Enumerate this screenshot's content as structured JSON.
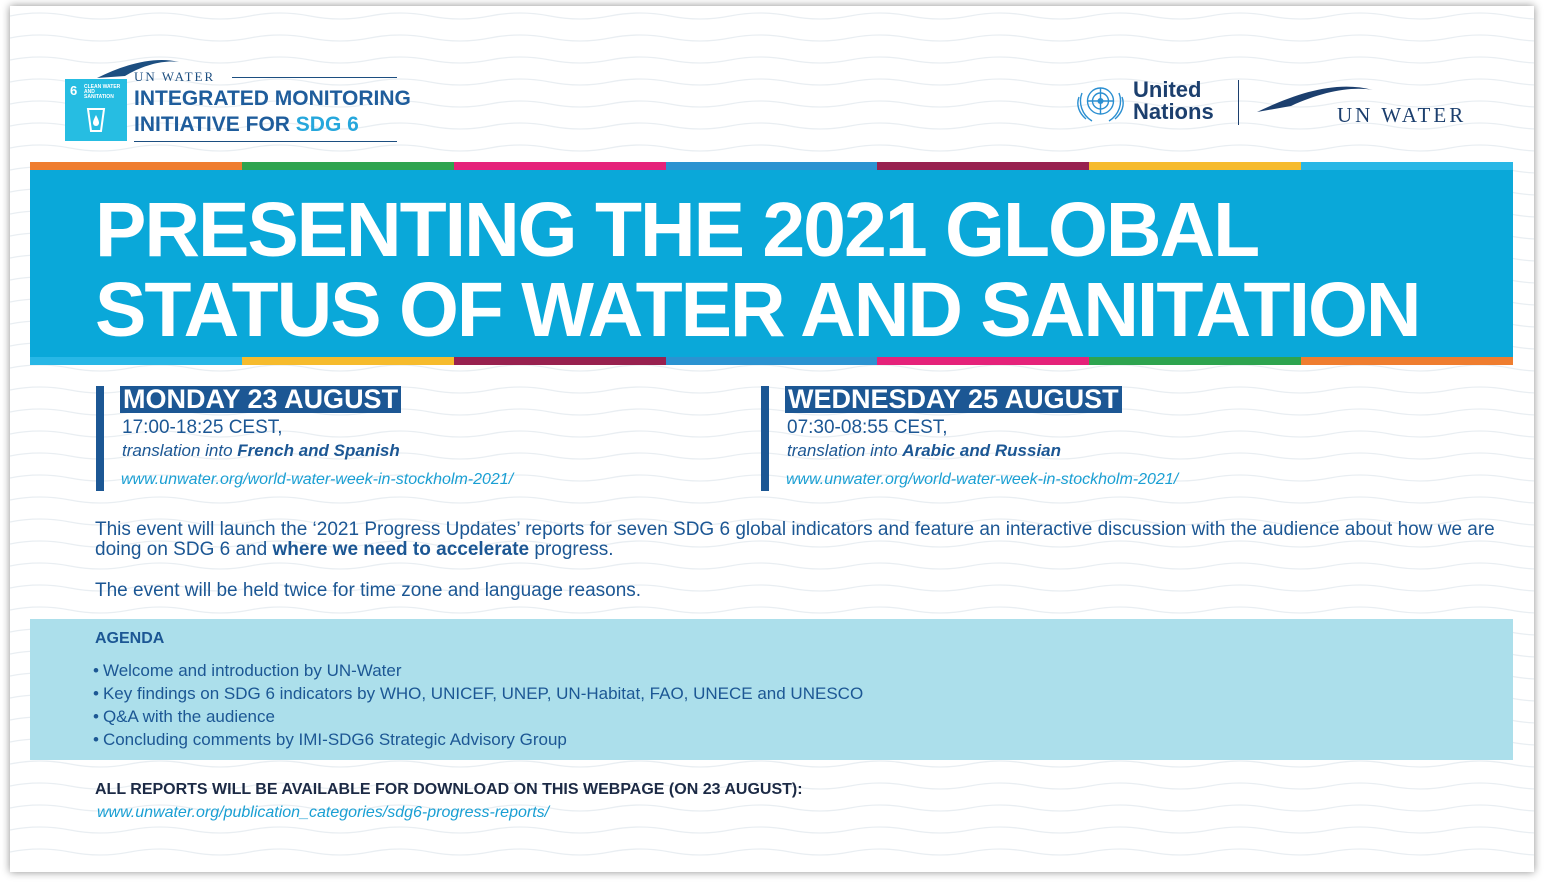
{
  "header": {
    "sdg_tile": {
      "number": "6",
      "text": "CLEAN WATER AND SANITATION",
      "icon": "water-glass-icon"
    },
    "unwater_small": "UN WATER",
    "initiative_line1": "INTEGRATED MONITORING",
    "initiative_line2_prefix": "INITIATIVE FOR ",
    "initiative_line2_accent": "SDG 6",
    "un_name_line1": "United",
    "un_name_line2": "Nations",
    "un_emblem_icon": "un-emblem-icon",
    "unwater_big": "UN WATER"
  },
  "banner": {
    "title_line1": "PRESENTING THE 2021 GLOBAL",
    "title_line2": "STATUS OF WATER AND SANITATION",
    "stripe_colors_top": [
      "#ef7d2f",
      "#2ea44f",
      "#e5227a",
      "#2b93d1",
      "#98214f",
      "#f6bb2d",
      "#28b7e6"
    ],
    "stripe_colors_bottom": [
      "#28b7e6",
      "#f6bb2d",
      "#98214f",
      "#2b93d1",
      "#e5227a",
      "#2ea44f",
      "#ef7d2f"
    ]
  },
  "sessions": [
    {
      "day": "MONDAY 23 AUGUST",
      "time": "17:00-18:25 CEST,",
      "translation_prefix": "translation into ",
      "translation_languages": "French and Spanish",
      "url": "www.unwater.org/world-water-week-in-stockholm-2021/"
    },
    {
      "day": "WEDNESDAY 25 AUGUST",
      "time": "07:30-08:55 CEST,",
      "translation_prefix": "translation into ",
      "translation_languages": "Arabic and Russian",
      "url": "www.unwater.org/world-water-week-in-stockholm-2021/"
    }
  ],
  "description": {
    "part1": "This event will launch the ‘2021 Progress Updates’ reports for seven SDG 6 global indicators and feature an interactive discussion with the audience about how we are doing on SDG 6 and ",
    "emphasis": "where we need to accelerate",
    "part2": " progress.",
    "note": "The event will be held twice for time zone and language reasons."
  },
  "agenda": {
    "title": "AGENDA",
    "items": [
      "Welcome and introduction by UN-Water",
      "Key findings on SDG 6 indicators by WHO, UNICEF, UNEP, UN-Habitat, FAO, UNECE and UNESCO",
      "Q&A with the audience",
      "Concluding comments by IMI-SDG6 Strategic Advisory Group"
    ]
  },
  "reports": {
    "title": "ALL REPORTS WILL BE AVAILABLE FOR DOWNLOAD ON THIS WEBPAGE (ON 23 AUGUST):",
    "url": "www.unwater.org/publication_categories/sdg6-progress-reports/"
  }
}
